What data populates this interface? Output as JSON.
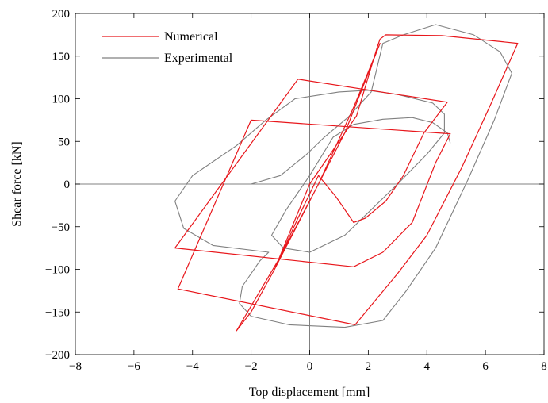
{
  "chart_data": {
    "type": "line",
    "xlabel": "Top displacement [mm]",
    "ylabel": "Shear force [kN]",
    "xlim": [
      -8,
      8
    ],
    "ylim": [
      -200,
      200
    ],
    "xticks": [
      -8,
      -6,
      -4,
      -2,
      0,
      2,
      4,
      6,
      8
    ],
    "yticks": [
      -200,
      -150,
      -100,
      -50,
      0,
      50,
      100,
      150,
      200
    ],
    "xtick_labels": [
      "−8",
      "−6",
      "−4",
      "−2",
      "0",
      "2",
      "4",
      "6",
      "8"
    ],
    "ytick_labels": [
      "−200",
      "−150",
      "−100",
      "−50",
      "0",
      "50",
      "100",
      "150",
      "200"
    ],
    "grid": false,
    "zero_lines": true,
    "legend_position": "top-left",
    "series": [
      {
        "name": "Numerical",
        "color": "#e8171c",
        "points": [
          [
            0,
            0
          ],
          [
            0.8,
            40
          ],
          [
            1.6,
            80
          ],
          [
            2.3,
            160
          ],
          [
            2.4,
            170
          ],
          [
            2.6,
            175
          ],
          [
            4.5,
            174
          ],
          [
            7.1,
            165
          ],
          [
            6.2,
            95
          ],
          [
            5.2,
            20
          ],
          [
            4.0,
            -60
          ],
          [
            3.0,
            -105
          ],
          [
            1.55,
            -165
          ],
          [
            -4.5,
            -123
          ],
          [
            -2.0,
            75
          ],
          [
            4.8,
            59
          ],
          [
            4.3,
            25
          ],
          [
            3.5,
            -45
          ],
          [
            2.5,
            -80
          ],
          [
            1.5,
            -97
          ],
          [
            -4.6,
            -75
          ],
          [
            -0.4,
            123
          ],
          [
            4.7,
            96
          ],
          [
            3.9,
            60
          ],
          [
            3.2,
            10
          ],
          [
            2.6,
            -20
          ],
          [
            1.9,
            -40
          ],
          [
            1.5,
            -45
          ],
          [
            0.9,
            -15
          ],
          [
            0.3,
            10
          ],
          [
            -0.4,
            -40
          ],
          [
            -1.2,
            -100
          ],
          [
            -2.0,
            -150
          ],
          [
            -2.5,
            -172
          ],
          [
            -1.0,
            -85
          ],
          [
            0.3,
            0
          ],
          [
            1.5,
            90
          ],
          [
            2.4,
            165
          ],
          [
            1.2,
            60
          ],
          [
            0,
            -20
          ],
          [
            -1.2,
            -100
          ],
          [
            0,
            0
          ]
        ]
      },
      {
        "name": "Experimental",
        "color": "#808080",
        "points": [
          [
            -2.0,
            0
          ],
          [
            -1.0,
            10
          ],
          [
            -0.1,
            35
          ],
          [
            0.5,
            55
          ],
          [
            1.3,
            78
          ],
          [
            2.1,
            108
          ],
          [
            2.5,
            165
          ],
          [
            3.2,
            175
          ],
          [
            4.3,
            187
          ],
          [
            5.6,
            175
          ],
          [
            6.5,
            155
          ],
          [
            6.9,
            130
          ],
          [
            6.3,
            75
          ],
          [
            5.4,
            5
          ],
          [
            4.3,
            -75
          ],
          [
            3.3,
            -125
          ],
          [
            2.5,
            -160
          ],
          [
            1.2,
            -168
          ],
          [
            -0.7,
            -165
          ],
          [
            -2.0,
            -155
          ],
          [
            -2.4,
            -140
          ],
          [
            -2.3,
            -120
          ],
          [
            -1.7,
            -90
          ],
          [
            -1.4,
            -80
          ],
          [
            -3.3,
            -72
          ],
          [
            -4.3,
            -52
          ],
          [
            -4.6,
            -20
          ],
          [
            -4.0,
            10
          ],
          [
            -2.5,
            45
          ],
          [
            -1.5,
            75
          ],
          [
            -0.5,
            100
          ],
          [
            1.0,
            108
          ],
          [
            2.0,
            110
          ],
          [
            3.0,
            105
          ],
          [
            4.2,
            95
          ],
          [
            4.6,
            82
          ],
          [
            4.6,
            60
          ],
          [
            4.0,
            35
          ],
          [
            3.0,
            0
          ],
          [
            2.1,
            -30
          ],
          [
            1.2,
            -60
          ],
          [
            0.0,
            -80
          ],
          [
            -0.9,
            -75
          ],
          [
            -1.3,
            -60
          ],
          [
            -0.8,
            -30
          ],
          [
            0.0,
            10
          ],
          [
            0.8,
            55
          ],
          [
            1.5,
            70
          ],
          [
            2.5,
            76
          ],
          [
            3.5,
            78
          ],
          [
            4.2,
            72
          ],
          [
            4.7,
            60
          ],
          [
            4.8,
            48
          ]
        ]
      }
    ]
  }
}
